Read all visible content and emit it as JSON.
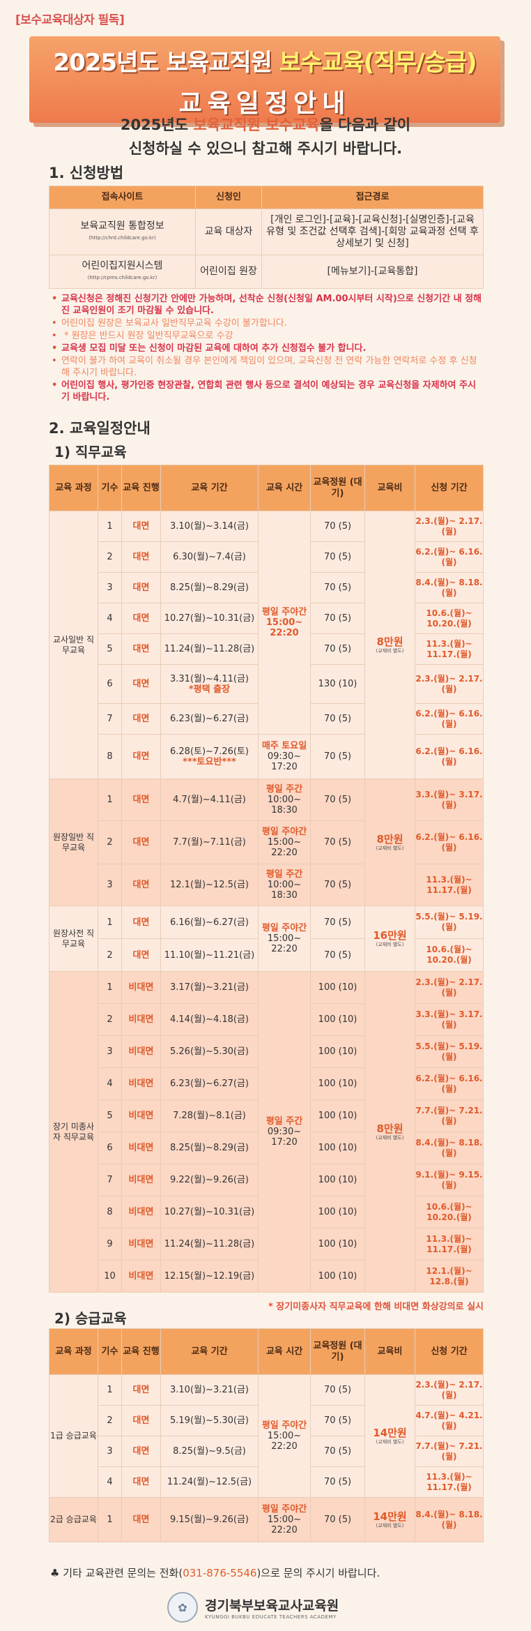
{
  "header": {
    "tag": "[보수교육대상자 필독]",
    "title_line1_pre": "2025년도 보육교직원 ",
    "title_line1_hl": "보수교육(직무/승급)",
    "title_line2": "교육일정안내"
  },
  "intro": {
    "line1_pre": "2025년도 ",
    "line1_hl": "보육교직원 보수교육",
    "line1_post": "을 다음과 같이",
    "line2": "신청하실 수 있으니 참고해 주시기 바랍니다."
  },
  "section1": {
    "title": "1. 신청방법",
    "headers": [
      "접속사이트",
      "신청인",
      "접근경로"
    ],
    "rows": [
      {
        "site": "보육교직원 통합정보",
        "url": "(http://chrd.childcare.go.kr)",
        "who": "교육 대상자",
        "path": "[개인 로그인]-[교육]-[교육신청]-[실명인증]-[교육 유형 및 조건값 선택후 검색]-[회망 교육과정 선택 후 상세보기 및 신청]"
      },
      {
        "site": "어린이집지원시스템",
        "url": "(http://cpms.childcare.go.kr)",
        "who": "어린이집 원장",
        "path": "[메뉴보기]-[교육통합]"
      }
    ],
    "notes": [
      {
        "style": "red",
        "text": "교육신청은 정해진 신청기간 안에만 가능하며, 선착순 신청(신청일 AM.00시부터 시작)으로 신청기간 내 정해진 교육인원이 조기 마감될 수 있습니다."
      },
      {
        "style": "or",
        "text": "어린이집 원장은 보육교사 일반직무교육 수강이 불가합니다."
      },
      {
        "style": "or",
        "text": "* 원장은 반드시 원장 일반직무교육으로 수강",
        "nobullet": true
      },
      {
        "style": "red",
        "text": "교육생 모집 미달 또는 신청이 마감된 교육에 대하여 추가 신청접수 불가 합니다."
      },
      {
        "style": "or",
        "text": "연락이 불가 하여 교육이 취소될 경우 본인에게 책임이 있으며, 교육신청 전 연락 가능한 연락처로 수정 후 신청해 주시기 바랍니다."
      },
      {
        "style": "red",
        "text": "어린이집 행사, 평가인증 현장관찰, 연합회 관련 행사 등으로 결석이 예상되는 경우 교육신청을 자제하여 주시기 바랍니다."
      }
    ]
  },
  "section2": {
    "title": "2. 교육일정안내",
    "sub1": "1) 직무교육",
    "sub2": "2) 승급교육",
    "headers": [
      "교육 과정",
      "기수",
      "교육 진행",
      "교육 기간",
      "교육 시간",
      "교육정원 (대기)",
      "교육비",
      "신청 기간"
    ],
    "remark": "* 장기미종사자 직무교육에 한해 비대면 화상강의로 실시",
    "jikmu": [
      {
        "course": "교사일반 직무교육",
        "rows": [
          {
            "n": "1",
            "mode": "대면",
            "period": "3.10(월)~3.14(금)",
            "cap": "70 (5)",
            "apply": "2.3.(월)~ 2.17.(월)"
          },
          {
            "n": "2",
            "mode": "대면",
            "period": "6.30(월)~7.4(금)",
            "cap": "70 (5)",
            "apply": "6.2.(월)~ 6.16.(월)"
          },
          {
            "n": "3",
            "mode": "대면",
            "period": "8.25(월)~8.29(금)",
            "cap": "70 (5)",
            "apply": "8.4.(월)~ 8.18.(월)"
          },
          {
            "n": "4",
            "mode": "대면",
            "period": "10.27(월)~10.31(금)",
            "cap": "70 (5)",
            "apply": "10.6.(월)~ 10.20.(월)"
          },
          {
            "n": "5",
            "mode": "대면",
            "period": "11.24(월)~11.28(금)",
            "cap": "70 (5)",
            "apply": "11.3.(월)~ 11.17.(월)"
          },
          {
            "n": "6",
            "mode": "대면",
            "period": "3.31(월)~4.11(금)",
            "note": "*평택 출장",
            "cap": "130 (10)",
            "apply": "2.3.(월)~ 2.17.(월)"
          },
          {
            "n": "7",
            "mode": "대면",
            "period": "6.23(월)~6.27(금)",
            "cap": "70 (5)",
            "apply": "6.2.(월)~ 6.16.(월)"
          },
          {
            "n": "8",
            "mode": "대면",
            "period": "6.28(토)~7.26(토)",
            "note": "***토요반***",
            "cap": "70 (5)",
            "apply": "6.2.(월)~ 6.16.(월)"
          }
        ],
        "time_a": "평일 주야간 15:00~ 22:20",
        "time_b_hl": "매주 토요일",
        "time_b": "09:30~ 17:20",
        "fee": "8만원",
        "fee_note": "(교재비 별도)"
      },
      {
        "course": "원장일반 직무교육",
        "rows": [
          {
            "n": "1",
            "mode": "대면",
            "period": "4.7(월)~4.11(금)",
            "time_hl": "평일 주간",
            "time": "10:00~ 18:30",
            "cap": "70 (5)",
            "apply": "3.3.(월)~ 3.17.(월)"
          },
          {
            "n": "2",
            "mode": "대면",
            "period": "7.7(월)~7.11(금)",
            "time_hl": "평일 주야간",
            "time": "15:00~ 22:20",
            "cap": "70 (5)",
            "apply": "6.2.(월)~ 6.16.(월)"
          },
          {
            "n": "3",
            "mode": "대면",
            "period": "12.1(월)~12.5(금)",
            "time_hl": "평일 주간",
            "time": "10:00~ 18:30",
            "cap": "70 (5)",
            "apply": "11.3.(월)~ 11.17.(월)"
          }
        ],
        "fee": "8만원",
        "fee_note": "(교재비 별도)"
      },
      {
        "course": "원장사전 직무교육",
        "rows": [
          {
            "n": "1",
            "mode": "대면",
            "period": "6.16(월)~6.27(금)",
            "cap": "70 (5)",
            "apply": "5.5.(월)~ 5.19.(월)"
          },
          {
            "n": "2",
            "mode": "대면",
            "period": "11.10(월)~11.21(금)",
            "cap": "70 (5)",
            "apply": "10.6.(월)~ 10.20.(월)"
          }
        ],
        "time_hl": "평일 주야간",
        "time": "15:00~ 22:20",
        "fee": "16만원",
        "fee_note": "(교재비 별도)"
      },
      {
        "course": "장기 미종사자 직무교육",
        "rows": [
          {
            "n": "1",
            "mode": "비대면",
            "period": "3.17(월)~3.21(금)",
            "cap": "100 (10)",
            "apply": "2.3.(월)~ 2.17.(월)"
          },
          {
            "n": "2",
            "mode": "비대면",
            "period": "4.14(월)~4.18(금)",
            "cap": "100 (10)",
            "apply": "3.3.(월)~ 3.17.(월)"
          },
          {
            "n": "3",
            "mode": "비대면",
            "period": "5.26(월)~5.30(금)",
            "cap": "100 (10)",
            "apply": "5.5.(월)~ 5.19.(월)"
          },
          {
            "n": "4",
            "mode": "비대면",
            "period": "6.23(월)~6.27(금)",
            "cap": "100 (10)",
            "apply": "6.2.(월)~ 6.16.(월)"
          },
          {
            "n": "5",
            "mode": "비대면",
            "period": "7.28(월)~8.1(금)",
            "cap": "100 (10)",
            "apply": "7.7.(월)~ 7.21.(월)"
          },
          {
            "n": "6",
            "mode": "비대면",
            "period": "8.25(월)~8.29(금)",
            "cap": "100 (10)",
            "apply": "8.4.(월)~ 8.18.(월)"
          },
          {
            "n": "7",
            "mode": "비대면",
            "period": "9.22(월)~9.26(금)",
            "cap": "100 (10)",
            "apply": "9.1.(월)~ 9.15.(월)"
          },
          {
            "n": "8",
            "mode": "비대면",
            "period": "10.27(월)~10.31(금)",
            "cap": "100 (10)",
            "apply": "10.6.(월)~ 10.20.(월)"
          },
          {
            "n": "9",
            "mode": "비대면",
            "period": "11.24(월)~11.28(금)",
            "cap": "100 (10)",
            "apply": "11.3.(월)~ 11.17.(월)"
          },
          {
            "n": "10",
            "mode": "비대면",
            "period": "12.15(월)~12.19(금)",
            "cap": "100 (10)",
            "apply": "12.1.(월)~ 12.8.(월)"
          }
        ],
        "time_hl": "평일 주간",
        "time": "09:30~ 17:20",
        "fee": "8만원",
        "fee_note": "(교재비 별도)"
      }
    ],
    "seunggeup": [
      {
        "course": "1급 승급교육",
        "rows": [
          {
            "n": "1",
            "mode": "대면",
            "period": "3.10(월)~3.21(금)",
            "cap": "70 (5)",
            "apply": "2.3.(월)~ 2.17.(월)"
          },
          {
            "n": "2",
            "mode": "대면",
            "period": "5.19(월)~5.30(금)",
            "cap": "70 (5)",
            "apply": "4.7.(월)~ 4.21.(월)"
          },
          {
            "n": "3",
            "mode": "대면",
            "period": "8.25(월)~9.5(금)",
            "cap": "70 (5)",
            "apply": "7.7.(월)~ 7.21.(월)"
          },
          {
            "n": "4",
            "mode": "대면",
            "period": "11.24(월)~12.5(금)",
            "cap": "70 (5)",
            "apply": "11.3.(월)~ 11.17.(월)"
          }
        ],
        "time_hl": "평일 주야간",
        "time": "15:00~ 22:20",
        "fee": "14만원",
        "fee_note": "(교재비 별도)"
      },
      {
        "course": "2급 승급교육",
        "rows": [
          {
            "n": "1",
            "mode": "대면",
            "period": "9.15(월)~9.26(금)",
            "cap": "70 (5)",
            "apply": "8.4.(월)~ 8.18.(월)"
          }
        ],
        "time_hl": "평일 주야간",
        "time": "15:00~ 22:20",
        "fee": "14만원",
        "fee_note": "(교재비 별도)"
      }
    ]
  },
  "contact": {
    "pre": "♣ 기타 교육관련 문의는 전화(",
    "phone": "031-876-5546",
    "post": ")으로 문의 주시기 바랍니다."
  },
  "footer": {
    "name": "경기북부보육교사교육원",
    "name_en": "KYUNGGI BUKBU EDUCATE TEACHERS ACADEMY"
  }
}
